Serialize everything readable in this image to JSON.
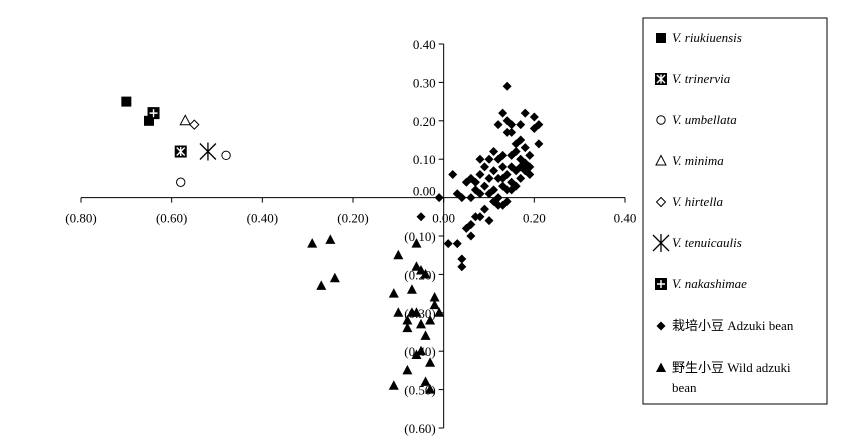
{
  "chart_data": {
    "type": "scatter",
    "title": "",
    "xlabel": "",
    "ylabel": "",
    "xlim": [
      -0.8,
      0.4
    ],
    "ylim": [
      -0.6,
      0.4
    ],
    "x_ticks": [
      {
        "value": -0.8,
        "label": "(0.80)"
      },
      {
        "value": -0.6,
        "label": "(0.60)"
      },
      {
        "value": -0.4,
        "label": "(0.40)"
      },
      {
        "value": -0.2,
        "label": "(0.20)"
      },
      {
        "value": 0.0,
        "label": "0.00"
      },
      {
        "value": 0.2,
        "label": "0.20"
      },
      {
        "value": 0.4,
        "label": "0.40"
      }
    ],
    "y_ticks": [
      {
        "value": 0.4,
        "label": "0.40"
      },
      {
        "value": 0.3,
        "label": "0.30"
      },
      {
        "value": 0.2,
        "label": "0.20"
      },
      {
        "value": 0.1,
        "label": "0.10"
      },
      {
        "value": 0.0,
        "label": "0.00"
      },
      {
        "value": -0.1,
        "label": "(0.10)"
      },
      {
        "value": -0.2,
        "label": "(0.20)"
      },
      {
        "value": -0.3,
        "label": "(0.30)"
      },
      {
        "value": -0.4,
        "label": "(0.40)"
      },
      {
        "value": -0.5,
        "label": "(0.50)"
      },
      {
        "value": -0.6,
        "label": "(0.60)"
      }
    ],
    "grid": false,
    "legend_position": "right",
    "series": [
      {
        "name": "V. riukiuensis",
        "name_cn": "",
        "marker": "square",
        "points": [
          [
            -0.7,
            0.25
          ],
          [
            -0.65,
            0.2
          ]
        ]
      },
      {
        "name": "V. trinervia",
        "name_cn": "",
        "marker": "square-x",
        "points": [
          [
            -0.58,
            0.12
          ]
        ]
      },
      {
        "name": "V. umbellata",
        "name_cn": "",
        "marker": "circle",
        "points": [
          [
            -0.58,
            0.04
          ],
          [
            -0.48,
            0.11
          ]
        ]
      },
      {
        "name": "V. minima",
        "name_cn": "",
        "marker": "triangle-open",
        "points": [
          [
            -0.57,
            0.2
          ]
        ]
      },
      {
        "name": "V. hirtella",
        "name_cn": "",
        "marker": "diamond-open",
        "points": [
          [
            -0.55,
            0.19
          ]
        ]
      },
      {
        "name": "V. tenuicaulis",
        "name_cn": "",
        "marker": "asterisk",
        "points": [
          [
            -0.52,
            0.12
          ]
        ]
      },
      {
        "name": "V. nakashimae",
        "name_cn": "",
        "marker": "square-plus",
        "points": [
          [
            -0.64,
            0.22
          ]
        ]
      },
      {
        "name": "Adzuki bean",
        "name_cn": "栽培小豆",
        "marker": "diamond",
        "points": [
          [
            0.14,
            0.29
          ],
          [
            0.13,
            0.22
          ],
          [
            0.14,
            0.2
          ],
          [
            0.12,
            0.19
          ],
          [
            0.14,
            0.17
          ],
          [
            0.15,
            0.17
          ],
          [
            0.15,
            0.19
          ],
          [
            0.18,
            0.22
          ],
          [
            0.2,
            0.21
          ],
          [
            0.21,
            0.19
          ],
          [
            0.2,
            0.18
          ],
          [
            0.17,
            0.19
          ],
          [
            0.17,
            0.15
          ],
          [
            0.16,
            0.14
          ],
          [
            0.18,
            0.13
          ],
          [
            0.21,
            0.14
          ],
          [
            0.16,
            0.12
          ],
          [
            0.19,
            0.11
          ],
          [
            0.17,
            0.1
          ],
          [
            0.15,
            0.11
          ],
          [
            0.13,
            0.11
          ],
          [
            0.11,
            0.12
          ],
          [
            0.12,
            0.1
          ],
          [
            0.1,
            0.1
          ],
          [
            0.08,
            0.1
          ],
          [
            0.09,
            0.08
          ],
          [
            0.11,
            0.07
          ],
          [
            0.13,
            0.08
          ],
          [
            0.15,
            0.08
          ],
          [
            0.17,
            0.08
          ],
          [
            0.18,
            0.09
          ],
          [
            0.19,
            0.08
          ],
          [
            0.14,
            0.06
          ],
          [
            0.12,
            0.05
          ],
          [
            0.1,
            0.05
          ],
          [
            0.08,
            0.06
          ],
          [
            0.07,
            0.04
          ],
          [
            0.06,
            0.05
          ],
          [
            0.05,
            0.04
          ],
          [
            0.07,
            0.02
          ],
          [
            0.09,
            0.03
          ],
          [
            0.11,
            0.02
          ],
          [
            0.13,
            0.03
          ],
          [
            0.15,
            0.04
          ],
          [
            0.17,
            0.05
          ],
          [
            0.16,
            0.03
          ],
          [
            0.14,
            0.02
          ],
          [
            0.12,
            0.0
          ],
          [
            0.1,
            0.01
          ],
          [
            0.08,
            0.01
          ],
          [
            0.06,
            0.0
          ],
          [
            0.04,
            0.0
          ],
          [
            0.02,
            0.06
          ],
          [
            0.03,
            0.01
          ],
          [
            0.14,
            -0.01
          ],
          [
            0.12,
            -0.02
          ],
          [
            0.13,
            -0.02
          ],
          [
            0.11,
            -0.01
          ],
          [
            0.09,
            -0.03
          ],
          [
            0.08,
            -0.05
          ],
          [
            0.1,
            -0.06
          ],
          [
            0.07,
            -0.05
          ],
          [
            0.05,
            -0.08
          ],
          [
            0.06,
            -0.1
          ],
          [
            0.03,
            -0.12
          ],
          [
            0.01,
            -0.12
          ],
          [
            0.06,
            -0.07
          ],
          [
            0.04,
            -0.16
          ],
          [
            0.04,
            -0.18
          ],
          [
            0.13,
            0.05
          ],
          [
            0.19,
            0.06
          ],
          [
            0.16,
            0.07
          ],
          [
            0.18,
            0.07
          ],
          [
            0.15,
            0.02
          ],
          [
            -0.01,
            0.0
          ],
          [
            -0.05,
            -0.05
          ]
        ]
      },
      {
        "name": "Wild adzuki bean",
        "name_cn": "野生小豆",
        "marker": "triangle",
        "points": [
          [
            -0.29,
            -0.12
          ],
          [
            -0.25,
            -0.11
          ],
          [
            -0.27,
            -0.23
          ],
          [
            -0.24,
            -0.21
          ],
          [
            -0.1,
            -0.15
          ],
          [
            -0.06,
            -0.12
          ],
          [
            -0.11,
            -0.25
          ],
          [
            -0.1,
            -0.3
          ],
          [
            -0.08,
            -0.32
          ],
          [
            -0.06,
            -0.18
          ],
          [
            -0.07,
            -0.24
          ],
          [
            -0.05,
            -0.19
          ],
          [
            -0.04,
            -0.2
          ],
          [
            -0.06,
            -0.3
          ],
          [
            -0.08,
            -0.34
          ],
          [
            -0.07,
            -0.3
          ],
          [
            -0.05,
            -0.33
          ],
          [
            -0.04,
            -0.36
          ],
          [
            -0.02,
            -0.28
          ],
          [
            -0.01,
            -0.3
          ],
          [
            -0.03,
            -0.32
          ],
          [
            -0.06,
            -0.41
          ],
          [
            -0.05,
            -0.4
          ],
          [
            -0.03,
            -0.43
          ],
          [
            -0.08,
            -0.45
          ],
          [
            -0.11,
            -0.49
          ],
          [
            -0.04,
            -0.48
          ],
          [
            -0.03,
            -0.5
          ],
          [
            -0.02,
            -0.26
          ]
        ]
      }
    ]
  }
}
